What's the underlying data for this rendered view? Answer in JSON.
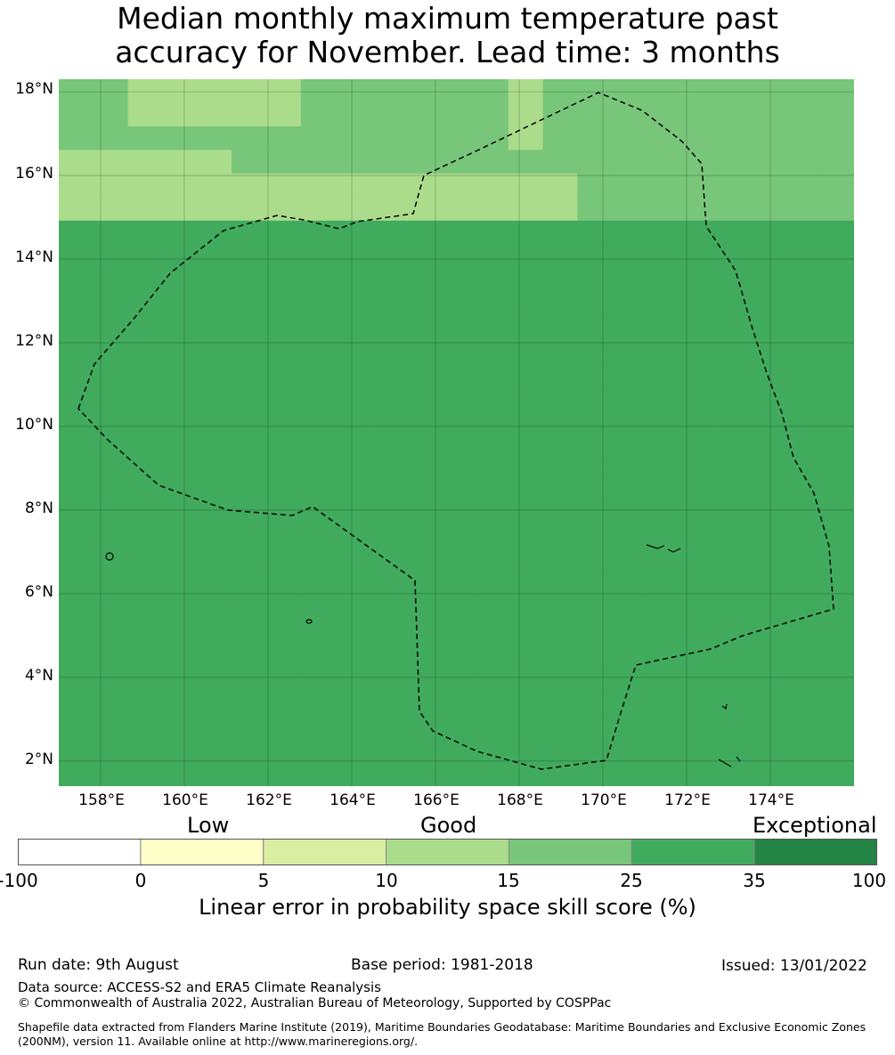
{
  "title_line1": "Median monthly maximum temperature past",
  "title_line2": "accuracy for November. Lead time: 3 months",
  "map": {
    "lon_range": [
      157,
      176
    ],
    "lat_range": [
      1.4,
      18.3
    ],
    "lat_ticks": [
      "18°N",
      "16°N",
      "14°N",
      "12°N",
      "10°N",
      "8°N",
      "6°N",
      "4°N",
      "2°N"
    ],
    "lon_ticks": [
      "158°E",
      "160°E",
      "162°E",
      "164°E",
      "166°E",
      "168°E",
      "170°E",
      "172°E",
      "174°E"
    ],
    "grid_cols": 23,
    "grid_rows": 30,
    "class_colors": [
      "#ffffff",
      "#fefec8",
      "#d9eea0",
      "#abdc8b",
      "#78c679",
      "#41ab5d",
      "#238443"
    ],
    "grid": [
      "44333334444443444444444",
      "44333334444443444444444",
      "44444444444443444444444",
      "33333444444444444444444",
      "33333333333333344444444",
      "33333333333333344444444",
      "55555555555555555555555",
      "55555555555555555555555",
      "55555555555555555555555",
      "55555555555555555555555",
      "55555555555555555555555",
      "55555555555555555555555",
      "55555555555555555555555",
      "55555555555555555555555",
      "55555555555555555555555",
      "55555555555555555555555",
      "55555555555555555555555",
      "55555555555555555555555",
      "55555555555555555555555",
      "55555555555555555555555",
      "55555555555555555555555",
      "55555555555555555555555",
      "55555555555555555555555",
      "55555555555555555555555",
      "55555555555555555555555",
      "55555555555555555555555",
      "55555555555555555555555",
      "55555555555555555555555",
      "55555555555555555555555",
      "55555555555555555555555"
    ]
  },
  "colorbar": {
    "categories": [
      "Low",
      "Good",
      "Exceptional"
    ],
    "ticks": [
      "-100",
      "0",
      "5",
      "10",
      "15",
      "25",
      "35",
      "100"
    ],
    "label": "Linear error in probability space skill score (%)"
  },
  "footer": {
    "run_date": "Run date: 9th August",
    "base_period": "Base period: 1981-2018",
    "issued": "Issued: 13/01/2022",
    "data_source": "Data source: ACCESS-S2 and ERA5 Climate Reanalysis",
    "copyright": "© Commonwealth of Australia 2022, Australian Bureau of Meteorology, Supported by COSPPac",
    "shapefile": "Shapefile data extracted from Flanders Marine Institute (2019), Maritime Boundaries Geodatabase: Maritime Boundaries and Exclusive Economic Zones (200NM), version 11. Available online at http://www.marineregions.org/."
  }
}
